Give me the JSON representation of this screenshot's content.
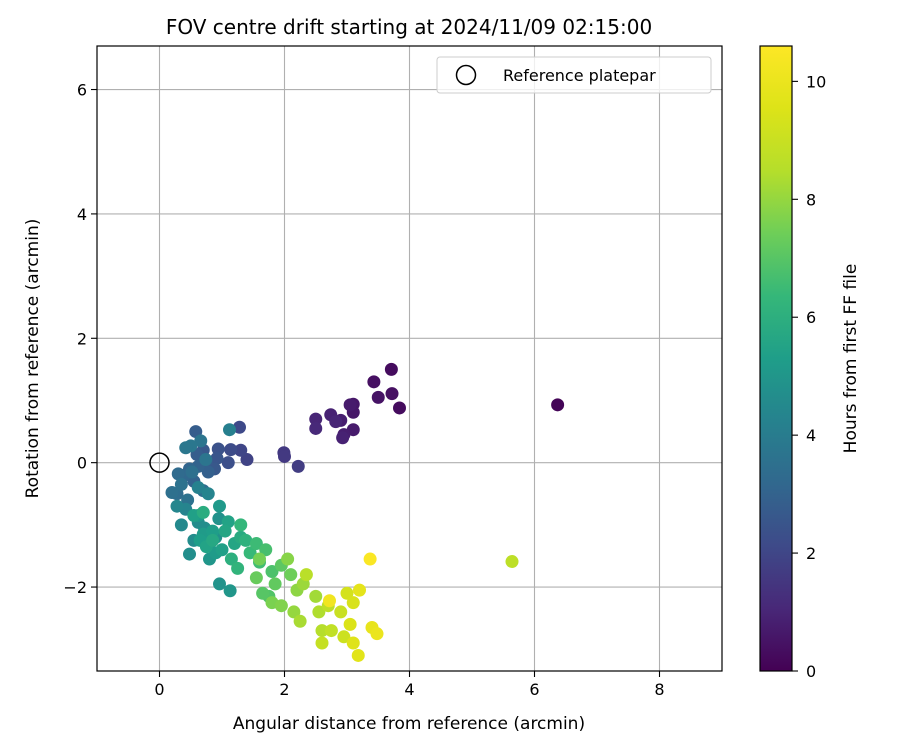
{
  "chart_data": {
    "type": "scatter",
    "title": "FOV centre drift starting at 2024/11/09 02:15:00",
    "xlabel": "Angular distance from reference (arcmin)",
    "ylabel": "Rotation from reference (arcmin)",
    "xlim": [
      -1,
      9
    ],
    "ylim": [
      -3.35,
      6.7
    ],
    "xticks": [
      0,
      2,
      4,
      6,
      8
    ],
    "yticks": [
      -2,
      0,
      2,
      4,
      6
    ],
    "xtick_labels": [
      "0",
      "2",
      "4",
      "6",
      "8"
    ],
    "ytick_labels": [
      "−2",
      "0",
      "2",
      "4",
      "6"
    ],
    "grid": true,
    "colormap": "viridis",
    "colorbar": {
      "label": "Hours from first FF file",
      "range": [
        0,
        10.6
      ],
      "ticks": [
        0,
        2,
        4,
        6,
        8,
        10
      ],
      "tick_labels": [
        "0",
        "2",
        "4",
        "6",
        "8",
        "10"
      ]
    },
    "legend": {
      "placement": "top-right",
      "entries": [
        "Reference platepar"
      ]
    },
    "reference_point": {
      "x": 0,
      "y": 0
    },
    "columns": [
      "x",
      "y",
      "hours"
    ],
    "points": [
      [
        6.37,
        0.93,
        0.1
      ],
      [
        3.84,
        0.88,
        0.3
      ],
      [
        3.71,
        1.5,
        0.3
      ],
      [
        3.72,
        1.11,
        0.4
      ],
      [
        3.43,
        1.3,
        0.4
      ],
      [
        3.5,
        1.05,
        0.5
      ],
      [
        3.1,
        0.94,
        0.6
      ],
      [
        3.1,
        0.81,
        0.6
      ],
      [
        3.05,
        0.93,
        0.7
      ],
      [
        3.1,
        0.53,
        0.7
      ],
      [
        2.9,
        0.68,
        0.8
      ],
      [
        2.95,
        0.45,
        0.8
      ],
      [
        2.93,
        0.4,
        0.9
      ],
      [
        2.74,
        0.77,
        0.9
      ],
      [
        2.82,
        0.66,
        1.0
      ],
      [
        2.5,
        0.7,
        1.0
      ],
      [
        2.5,
        0.55,
        1.1
      ],
      [
        1.99,
        0.16,
        1.6
      ],
      [
        2.0,
        0.1,
        1.6
      ],
      [
        2.22,
        -0.06,
        1.7
      ],
      [
        1.4,
        0.05,
        1.9
      ],
      [
        1.3,
        0.2,
        2.0
      ],
      [
        1.28,
        0.57,
        2.1
      ],
      [
        1.14,
        0.21,
        2.2
      ],
      [
        1.1,
        0.0,
        2.3
      ],
      [
        0.94,
        0.22,
        2.4
      ],
      [
        0.92,
        0.07,
        2.5
      ],
      [
        0.88,
        -0.1,
        2.6
      ],
      [
        0.7,
        0.2,
        2.6
      ],
      [
        0.75,
        0.02,
        2.7
      ],
      [
        0.6,
        0.13,
        2.8
      ],
      [
        0.58,
        0.5,
        2.8
      ],
      [
        0.78,
        -0.15,
        2.9
      ],
      [
        0.62,
        -0.06,
        3.0
      ],
      [
        0.55,
        -0.3,
        3.0
      ],
      [
        0.48,
        -0.1,
        3.1
      ],
      [
        0.4,
        -0.2,
        3.2
      ],
      [
        0.3,
        -0.18,
        3.3
      ],
      [
        0.28,
        -0.5,
        3.4
      ],
      [
        0.7,
        -0.45,
        3.4
      ],
      [
        0.52,
        -0.15,
        3.5
      ],
      [
        0.2,
        -0.48,
        3.5
      ],
      [
        0.35,
        -0.35,
        3.6
      ],
      [
        0.45,
        -0.6,
        3.6
      ],
      [
        0.74,
        0.05,
        3.7
      ],
      [
        0.66,
        0.35,
        3.7
      ],
      [
        0.5,
        0.27,
        3.8
      ],
      [
        0.42,
        0.24,
        3.8
      ],
      [
        1.12,
        0.53,
        4.1
      ],
      [
        0.62,
        -0.4,
        4.2
      ],
      [
        0.78,
        -0.5,
        4.3
      ],
      [
        0.42,
        -0.75,
        4.3
      ],
      [
        0.28,
        -0.7,
        4.4
      ],
      [
        0.35,
        -1.0,
        4.5
      ],
      [
        0.62,
        -0.96,
        4.6
      ],
      [
        0.55,
        -1.25,
        4.6
      ],
      [
        0.48,
        -1.47,
        4.7
      ],
      [
        0.72,
        -1.05,
        4.7
      ],
      [
        0.95,
        -0.9,
        4.8
      ],
      [
        0.9,
        -1.2,
        4.8
      ],
      [
        0.8,
        -1.3,
        4.9
      ],
      [
        0.96,
        -1.95,
        4.9
      ],
      [
        1.13,
        -2.06,
        5.0
      ],
      [
        0.8,
        -1.55,
        5.0
      ],
      [
        0.96,
        -0.7,
        5.1
      ],
      [
        0.62,
        -0.85,
        5.1
      ],
      [
        0.7,
        -1.15,
        5.2
      ],
      [
        0.9,
        -1.45,
        5.2
      ],
      [
        0.65,
        -1.25,
        5.3
      ],
      [
        0.85,
        -1.1,
        5.3
      ],
      [
        1.0,
        -1.4,
        5.4
      ],
      [
        0.55,
        -0.85,
        5.4
      ],
      [
        1.1,
        -0.95,
        5.5
      ],
      [
        0.75,
        -1.35,
        5.5
      ],
      [
        1.2,
        -1.3,
        5.6
      ],
      [
        1.05,
        -1.1,
        5.6
      ],
      [
        0.85,
        -1.25,
        5.7
      ],
      [
        1.3,
        -1.2,
        5.8
      ],
      [
        0.7,
        -0.8,
        5.9
      ],
      [
        1.15,
        -1.55,
        6.0
      ],
      [
        1.38,
        -1.25,
        6.1
      ],
      [
        1.25,
        -1.7,
        6.2
      ],
      [
        1.3,
        -1.0,
        6.3
      ],
      [
        1.45,
        -1.45,
        6.4
      ],
      [
        1.55,
        -1.3,
        6.5
      ],
      [
        1.6,
        -1.6,
        6.6
      ],
      [
        1.7,
        -1.4,
        6.7
      ],
      [
        1.8,
        -1.75,
        6.8
      ],
      [
        1.75,
        -2.15,
        6.9
      ],
      [
        1.65,
        -2.1,
        7.0
      ],
      [
        1.95,
        -1.65,
        7.1
      ],
      [
        1.85,
        -1.95,
        7.2
      ],
      [
        1.55,
        -1.85,
        7.3
      ],
      [
        2.1,
        -1.8,
        7.4
      ],
      [
        1.6,
        -1.55,
        7.5
      ],
      [
        1.8,
        -2.25,
        7.6
      ],
      [
        1.95,
        -2.3,
        7.7
      ],
      [
        2.05,
        -1.55,
        7.8
      ],
      [
        2.2,
        -2.05,
        7.9
      ],
      [
        2.15,
        -2.4,
        8.0
      ],
      [
        2.3,
        -1.95,
        8.1
      ],
      [
        2.5,
        -2.15,
        8.2
      ],
      [
        2.25,
        -2.55,
        8.3
      ],
      [
        2.55,
        -2.4,
        8.4
      ],
      [
        2.6,
        -2.7,
        8.5
      ],
      [
        2.35,
        -1.8,
        8.6
      ],
      [
        2.7,
        -2.3,
        8.7
      ],
      [
        2.75,
        -2.7,
        8.8
      ],
      [
        2.6,
        -2.9,
        8.9
      ],
      [
        2.9,
        -2.4,
        9.0
      ],
      [
        2.95,
        -2.8,
        9.1
      ],
      [
        5.64,
        -1.59,
        8.7
      ],
      [
        3.0,
        -2.1,
        9.3
      ],
      [
        3.1,
        -2.25,
        9.4
      ],
      [
        3.05,
        -2.6,
        9.5
      ],
      [
        3.1,
        -2.9,
        9.6
      ],
      [
        3.18,
        -3.1,
        9.7
      ],
      [
        3.2,
        -2.05,
        9.8
      ],
      [
        3.4,
        -2.65,
        9.9
      ],
      [
        3.48,
        -2.75,
        10.0
      ],
      [
        2.72,
        -2.22,
        10.2
      ],
      [
        3.37,
        -1.55,
        10.5
      ]
    ]
  }
}
